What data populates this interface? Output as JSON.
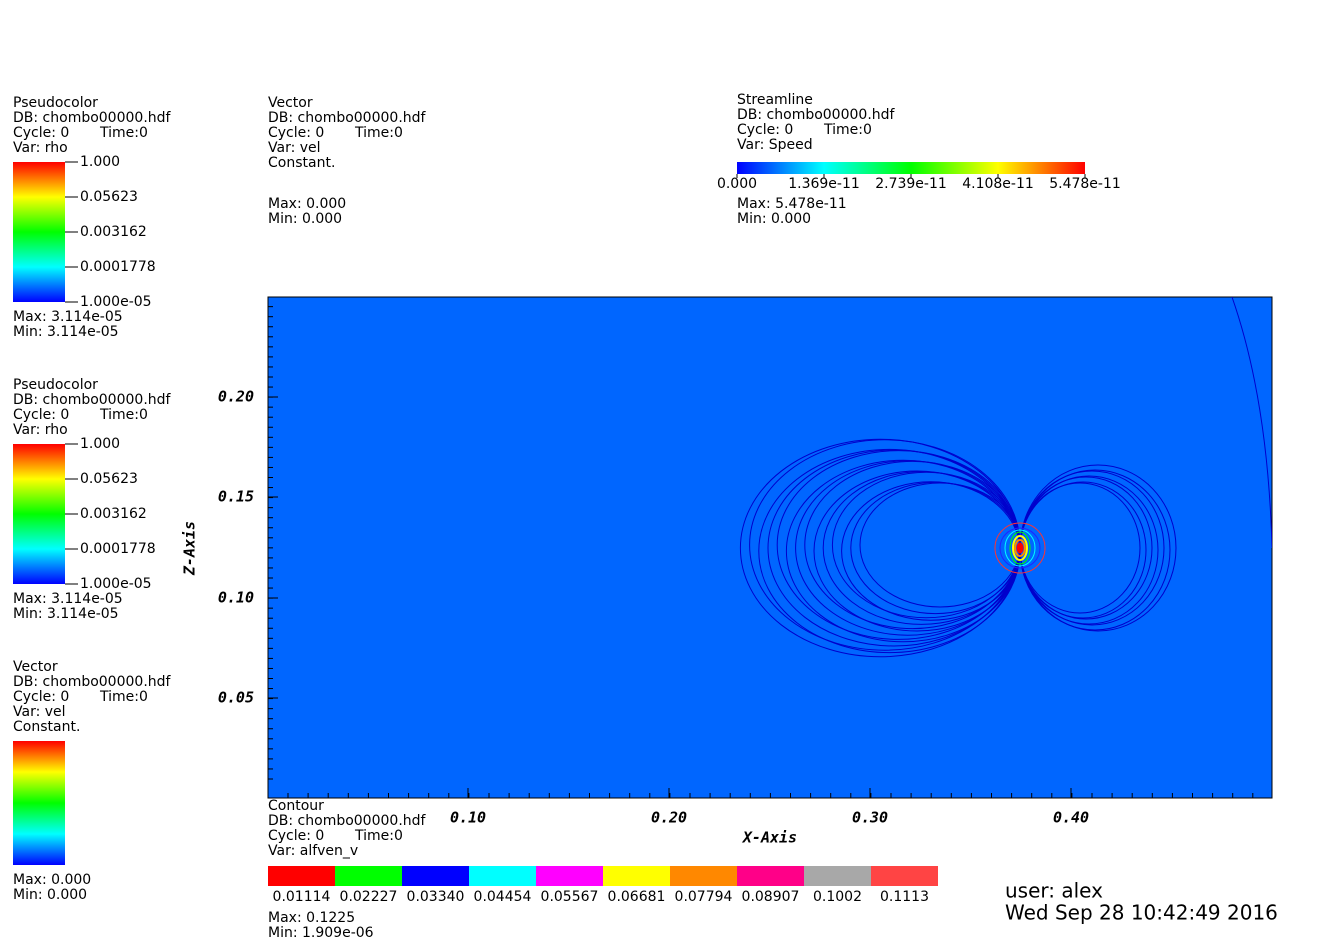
{
  "vertical_legends": [
    {
      "title": "Pseudocolor",
      "db": "DB: chombo00000.hdf",
      "cycle": "Cycle: 0",
      "time": "Time:0",
      "var": "Var: rho",
      "bar_labels": [
        "1.000",
        "0.05623",
        "0.003162",
        "0.0001778",
        "1.000e-05"
      ],
      "max": "Max:  3.114e-05",
      "min": "Min:  3.114e-05"
    },
    {
      "title": "Pseudocolor",
      "db": "DB: chombo00000.hdf",
      "cycle": "Cycle: 0",
      "time": "Time:0",
      "var": "Var: rho",
      "bar_labels": [
        "1.000",
        "0.05623",
        "0.003162",
        "0.0001778",
        "1.000e-05"
      ],
      "max": "Max:  3.114e-05",
      "min": "Min:  3.114e-05"
    },
    {
      "title": "Vector",
      "db": "DB: chombo00000.hdf",
      "cycle": "Cycle: 0",
      "time": "Time:0",
      "var": "Var: vel",
      "note": "Constant.",
      "max": "Max:  0.000",
      "min": "Min:  0.000"
    }
  ],
  "vector_legend": {
    "title": "Vector",
    "db": "DB: chombo00000.hdf",
    "cycle": "Cycle: 0",
    "time": "Time:0",
    "var": "Var: vel",
    "note": "Constant.",
    "max": "Max:  0.000",
    "min": "Min:  0.000"
  },
  "streamline_legend": {
    "title": "Streamline",
    "db": "DB: chombo00000.hdf",
    "cycle": "Cycle: 0",
    "time": "Time:0",
    "var": "Var: Speed",
    "bar_labels": [
      "0.000",
      "1.369e-11",
      "2.739e-11",
      "4.108e-11",
      "5.478e-11"
    ],
    "max": "Max:  5.478e-11",
    "min": "Min:  0.000"
  },
  "contour_legend": {
    "title": "Contour",
    "db": "DB: chombo00000.hdf",
    "cycle": "Cycle: 0",
    "time": "Time:0",
    "var": "Var: alfven_v",
    "levels": [
      "0.01114",
      "0.02227",
      "0.03340",
      "0.04454",
      "0.05567",
      "0.06681",
      "0.07794",
      "0.08907",
      "0.1002",
      "0.1113"
    ],
    "colors": [
      "#ff0000",
      "#00ff00",
      "#0000ff",
      "#00ffff",
      "#ff00ff",
      "#ffff00",
      "#ff8800",
      "#ff0088",
      "#a8a8a8",
      "#ff4444"
    ],
    "max": "Max:  0.1225",
    "min": "Min:  1.909e-06"
  },
  "axes": {
    "x_title": "X-Axis",
    "y_title": "Z-Axis",
    "xticks": [
      "0.10",
      "0.20",
      "0.30",
      "0.40"
    ],
    "yticks": [
      "0.20",
      "0.15",
      "0.10",
      "0.05"
    ]
  },
  "user": "user: alex",
  "date": "Wed Sep 28 10:42:49 2016"
}
